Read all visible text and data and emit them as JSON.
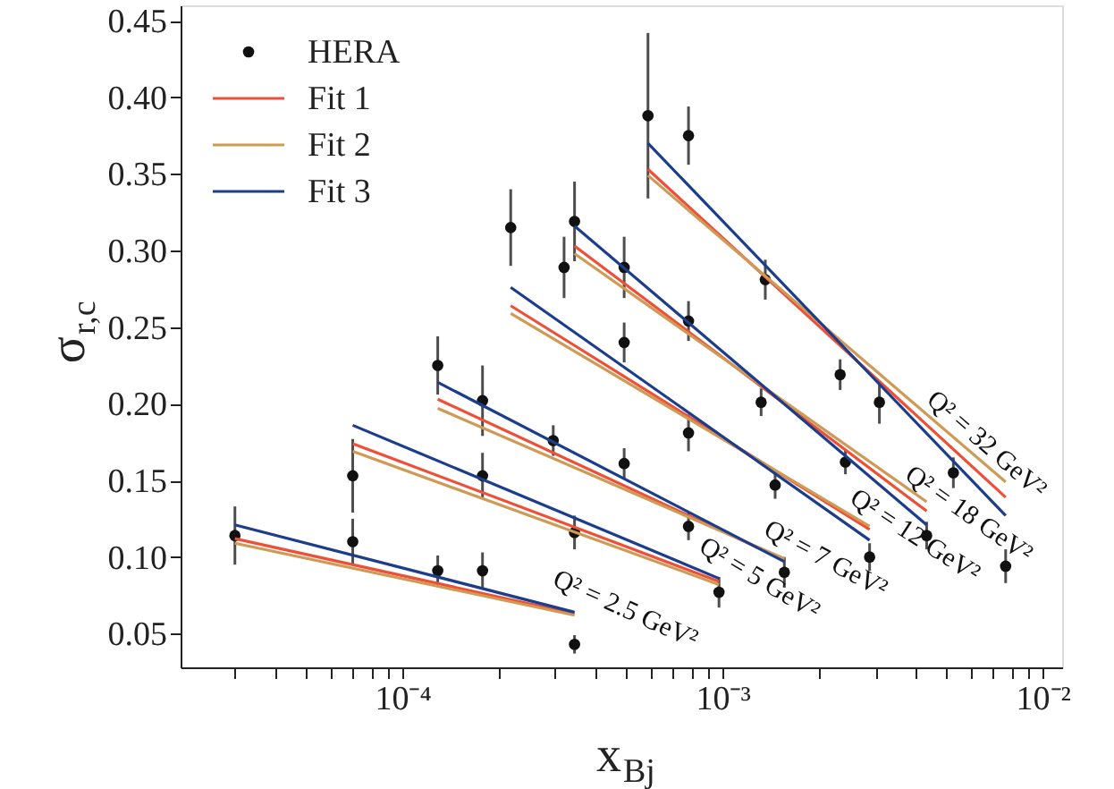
{
  "chart_data": {
    "type": "scatter",
    "xlabel": "x$_{Bj}$",
    "ylabel": "σ$_{r,c}$",
    "log": "x",
    "grid": false,
    "legend": "top left",
    "line_style": "solid",
    "xlim": [
      2.03e-05,
      0.0115
    ],
    "ylim": [
      0.028,
      0.46
    ],
    "xticks": [
      {
        "value": 3e-05,
        "label": null
      },
      {
        "value": 4e-05,
        "label": null
      },
      {
        "value": 5e-05,
        "label": null
      },
      {
        "value": 6e-05,
        "label": null
      },
      {
        "value": 7e-05,
        "label": null
      },
      {
        "value": 8e-05,
        "label": null
      },
      {
        "value": 9e-05,
        "label": null
      },
      {
        "value": 0.0001,
        "label": "10⁻⁴"
      },
      {
        "value": 0.0002,
        "label": null
      },
      {
        "value": 0.0003,
        "label": null
      },
      {
        "value": 0.0004,
        "label": null
      },
      {
        "value": 0.0005,
        "label": null
      },
      {
        "value": 0.0006,
        "label": null
      },
      {
        "value": 0.0007,
        "label": null
      },
      {
        "value": 0.0008,
        "label": null
      },
      {
        "value": 0.0009,
        "label": null
      },
      {
        "value": 0.001,
        "label": "10⁻³"
      },
      {
        "value": 0.002,
        "label": null
      },
      {
        "value": 0.003,
        "label": null
      },
      {
        "value": 0.004,
        "label": null
      },
      {
        "value": 0.005,
        "label": null
      },
      {
        "value": 0.006,
        "label": null
      },
      {
        "value": 0.007,
        "label": null
      },
      {
        "value": 0.008,
        "label": null
      },
      {
        "value": 0.009,
        "label": null
      },
      {
        "value": 0.01,
        "label": "10⁻²"
      }
    ],
    "yticks": [
      0.05,
      {
        "value": 0.1,
        "label": "0.10"
      },
      0.15,
      {
        "value": 0.2,
        "label": "0.20"
      },
      0.25,
      {
        "value": 0.3,
        "label": "0.30"
      },
      0.35,
      {
        "value": 0.4,
        "label": "0.40"
      },
      0.45
    ],
    "series": [
      {
        "name": "HERA",
        "color": "#111111",
        "marker": "circle",
        "x": [
          3e-05,
          7e-05,
          7e-05,
          0.000129,
          0.000129,
          0.000178,
          0.000178,
          0.000178,
          0.000218,
          0.000296,
          0.00032,
          0.000345,
          0.000345,
          0.000345,
          0.000493,
          0.000493,
          0.000493,
          0.000585,
          0.000783,
          0.000783,
          0.000783,
          0.000783,
          0.000975,
          0.00136,
          0.00132,
          0.00146,
          0.00156,
          0.00233,
          0.00242,
          0.00288,
          0.00309,
          0.00434,
          0.00526,
          0.00766
        ],
        "values": [
          0.114,
          0.153,
          0.11,
          0.091,
          0.225,
          0.202,
          0.153,
          0.091,
          0.315,
          0.176,
          0.289,
          0.319,
          0.116,
          0.043,
          0.289,
          0.24,
          0.161,
          0.388,
          0.375,
          0.254,
          0.181,
          0.12,
          0.077,
          0.281,
          0.201,
          0.147,
          0.09,
          0.219,
          0.162,
          0.1,
          0.201,
          0.114,
          0.155,
          0.094
        ],
        "errors": [
          0.019,
          0.024,
          0.015,
          0.01,
          0.019,
          0.023,
          0.015,
          0.012,
          0.025,
          0.01,
          0.02,
          0.026,
          0.011,
          0.006,
          0.02,
          0.013,
          0.01,
          0.054,
          0.019,
          0.013,
          0.012,
          0.009,
          0.01,
          0.013,
          0.009,
          0.009,
          0.01,
          0.01,
          0.008,
          0.009,
          0.014,
          0.009,
          0.01,
          0.011
        ]
      },
      {
        "name": "Fit 1",
        "type": "line",
        "color": "#ee4f36",
        "x": [
          3e-05,
          0.000345
        ],
        "values": [
          0.112,
          0.063
        ]
      },
      {
        "type": "line",
        "color": "#ee4f36",
        "x": [
          7e-05,
          0.000975
        ],
        "values": [
          0.174,
          0.084
        ]
      },
      {
        "type": "line",
        "color": "#ee4f36",
        "x": [
          0.000129,
          0.00156
        ],
        "values": [
          0.203,
          0.098
        ]
      },
      {
        "type": "line",
        "color": "#ee4f36",
        "x": [
          0.000218,
          0.00288
        ],
        "values": [
          0.264,
          0.118
        ]
      },
      {
        "type": "line",
        "color": "#ee4f36",
        "x": [
          0.000345,
          0.00434
        ],
        "values": [
          0.303,
          0.13
        ]
      },
      {
        "type": "line",
        "color": "#ee4f36",
        "x": [
          0.000585,
          0.00766
        ],
        "values": [
          0.353,
          0.139
        ]
      },
      {
        "name": "Fit 2",
        "type": "line",
        "color": "#cf9a55",
        "x": [
          3e-05,
          0.000345
        ],
        "values": [
          0.109,
          0.062
        ]
      },
      {
        "type": "line",
        "color": "#cf9a55",
        "x": [
          7e-05,
          0.000975
        ],
        "values": [
          0.169,
          0.082
        ]
      },
      {
        "type": "line",
        "color": "#cf9a55",
        "x": [
          0.000129,
          0.00156
        ],
        "values": [
          0.197,
          0.099
        ]
      },
      {
        "type": "line",
        "color": "#cf9a55",
        "x": [
          0.000218,
          0.00288
        ],
        "values": [
          0.259,
          0.12
        ]
      },
      {
        "type": "line",
        "color": "#cf9a55",
        "x": [
          0.000345,
          0.00434
        ],
        "values": [
          0.298,
          0.136
        ]
      },
      {
        "type": "line",
        "color": "#cf9a55",
        "x": [
          0.000585,
          0.00766
        ],
        "values": [
          0.349,
          0.149
        ]
      },
      {
        "name": "Fit 3",
        "type": "line",
        "color": "#1c3d8c",
        "x": [
          3e-05,
          0.000345
        ],
        "values": [
          0.121,
          0.064
        ]
      },
      {
        "type": "line",
        "color": "#1c3d8c",
        "x": [
          7e-05,
          0.000975
        ],
        "values": [
          0.186,
          0.086
        ]
      },
      {
        "type": "line",
        "color": "#1c3d8c",
        "x": [
          0.000129,
          0.00156
        ],
        "values": [
          0.214,
          0.097
        ]
      },
      {
        "type": "line",
        "color": "#1c3d8c",
        "x": [
          0.000218,
          0.00288
        ],
        "values": [
          0.276,
          0.111
        ]
      },
      {
        "type": "line",
        "color": "#1c3d8c",
        "x": [
          0.000345,
          0.00434
        ],
        "values": [
          0.316,
          0.121
        ]
      },
      {
        "type": "line",
        "color": "#1c3d8c",
        "x": [
          0.000585,
          0.00766
        ],
        "values": [
          0.37,
          0.127
        ]
      }
    ],
    "annotations": [
      "Q² = 2.5 GeV²",
      "Q² = 5 GeV²",
      "Q² = 7 GeV²",
      "Q² = 12 GeV²",
      "Q² = 18 GeV²",
      "Q² = 32 GeV²"
    ]
  }
}
